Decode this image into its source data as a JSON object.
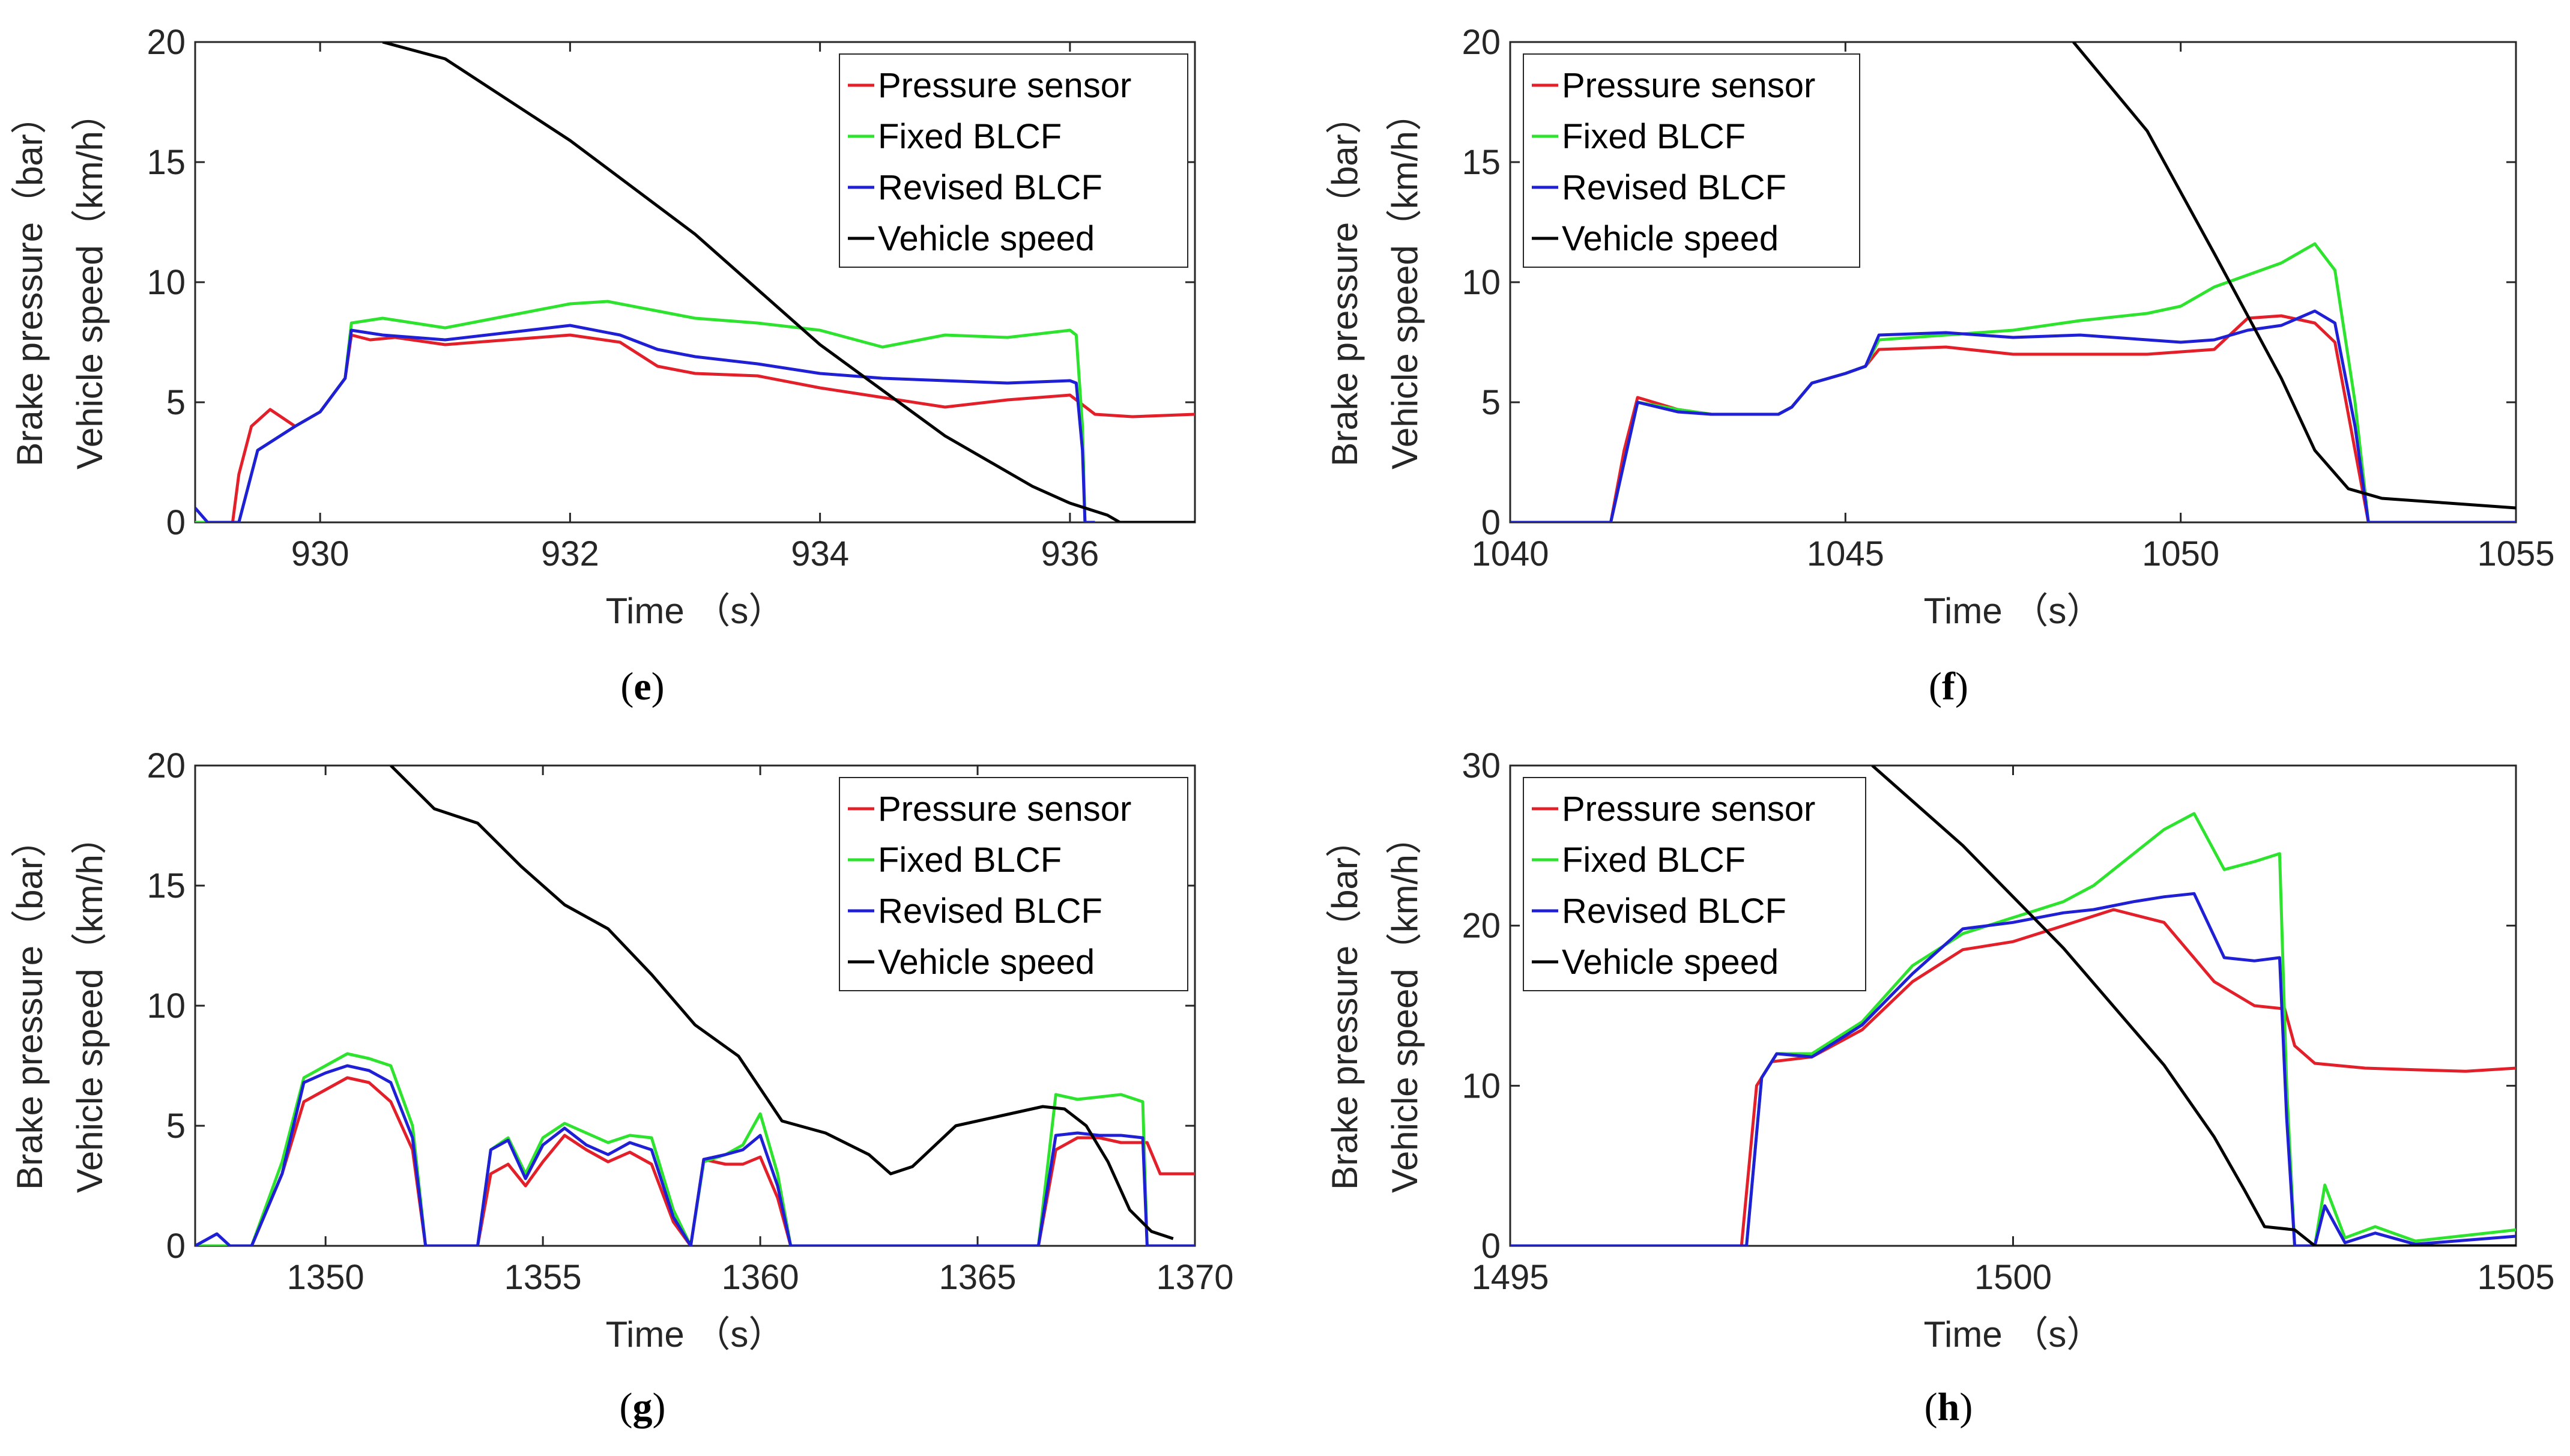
{
  "figure": {
    "panels": [
      "e",
      "f",
      "g",
      "h"
    ]
  },
  "legend": {
    "items": [
      {
        "name": "Pressure sensor",
        "color": "#e3202a"
      },
      {
        "name": "Fixed BLCF",
        "color": "#2ee32e"
      },
      {
        "name": "Revised BLCF",
        "color": "#1f1fd6"
      },
      {
        "name": "Vehicle speed",
        "color": "#000000"
      }
    ]
  },
  "chart_data": [
    {
      "panel": "e",
      "label_open": "(",
      "label_letter": "e",
      "label_close": ")",
      "type": "line",
      "xlabel": "Time （s）",
      "ylabel_top": "Brake pressure（bar）",
      "ylabel_bottom": "Vehicle speed（km/h）",
      "xlim": [
        929,
        937
      ],
      "ylim": [
        0,
        20
      ],
      "xticks": [
        930,
        932,
        934,
        936
      ],
      "yticks": [
        0,
        5,
        10,
        15,
        20
      ],
      "legend_position": "top-right",
      "series": [
        {
          "name": "Pressure sensor",
          "x": [
            929,
            929.3,
            929.35,
            929.45,
            929.6,
            929.8,
            930.0,
            930.2,
            930.25,
            930.4,
            930.6,
            931.0,
            931.5,
            932.0,
            932.4,
            932.7,
            933.0,
            933.5,
            934.0,
            934.5,
            935.0,
            935.5,
            936.0,
            936.2,
            936.5,
            937.0
          ],
          "y": [
            0,
            0,
            2,
            4,
            4.7,
            4,
            4.6,
            6,
            7.8,
            7.6,
            7.7,
            7.4,
            7.6,
            7.8,
            7.5,
            6.5,
            6.2,
            6.1,
            5.6,
            5.2,
            4.8,
            5.1,
            5.3,
            4.5,
            4.4,
            4.5
          ]
        },
        {
          "name": "Fixed BLCF",
          "x": [
            929,
            929.35,
            929.5,
            929.8,
            930.0,
            930.2,
            930.25,
            930.5,
            931.0,
            931.5,
            932.0,
            932.3,
            932.7,
            933.0,
            933.5,
            934.0,
            934.5,
            935.0,
            935.5,
            936.0,
            936.05,
            936.1,
            936.12,
            936.2
          ],
          "y": [
            0,
            0,
            3,
            4,
            4.6,
            6,
            8.3,
            8.5,
            8.1,
            8.6,
            9.1,
            9.2,
            8.8,
            8.5,
            8.3,
            8.0,
            7.3,
            7.8,
            7.7,
            8.0,
            7.8,
            4,
            0,
            0
          ]
        },
        {
          "name": "Revised BLCF",
          "x": [
            929,
            929.05,
            929.1,
            929.35,
            929.5,
            929.8,
            930.0,
            930.2,
            930.25,
            930.5,
            931.0,
            931.5,
            932.0,
            932.4,
            932.7,
            933.0,
            933.5,
            934.0,
            934.5,
            935.0,
            935.5,
            936.0,
            936.05,
            936.1,
            936.12,
            936.2
          ],
          "y": [
            0.6,
            0.3,
            0,
            0,
            3,
            4,
            4.6,
            6,
            8,
            7.8,
            7.6,
            7.9,
            8.2,
            7.8,
            7.2,
            6.9,
            6.6,
            6.2,
            6.0,
            5.9,
            5.8,
            5.9,
            5.8,
            3,
            0,
            0
          ]
        },
        {
          "name": "Vehicle speed",
          "x": [
            930.5,
            931.0,
            932.0,
            933.0,
            934.0,
            935.0,
            935.7,
            936.0,
            936.3,
            936.4,
            937.0
          ],
          "y": [
            20,
            19.3,
            15.9,
            12.0,
            7.4,
            3.6,
            1.5,
            0.8,
            0.3,
            0,
            0
          ]
        }
      ]
    },
    {
      "panel": "f",
      "label_open": "(",
      "label_letter": "f",
      "label_close": ")",
      "type": "line",
      "xlabel": "Time （s）",
      "ylabel_top": "Brake pressure（bar）",
      "ylabel_bottom": "Vehicle speed（km/h）",
      "xlim": [
        1040,
        1055
      ],
      "ylim": [
        0,
        20
      ],
      "xticks": [
        1040,
        1045,
        1050,
        1055
      ],
      "yticks": [
        0,
        5,
        10,
        15,
        20
      ],
      "legend_position": "top-left",
      "series": [
        {
          "name": "Pressure sensor",
          "x": [
            1040,
            1041.5,
            1041.7,
            1041.9,
            1042.5,
            1043.0,
            1044.0,
            1044.2,
            1044.5,
            1045.0,
            1045.3,
            1045.5,
            1046.5,
            1047.5,
            1048.5,
            1049.5,
            1050.5,
            1051.0,
            1051.5,
            1052.0,
            1052.3,
            1052.6,
            1052.8,
            1055.0
          ],
          "y": [
            0,
            0,
            3,
            5.2,
            4.7,
            4.5,
            4.5,
            4.8,
            5.8,
            6.2,
            6.5,
            7.2,
            7.3,
            7.0,
            7.0,
            7.0,
            7.2,
            8.5,
            8.6,
            8.3,
            7.5,
            3,
            0,
            0
          ]
        },
        {
          "name": "Fixed BLCF",
          "x": [
            1040,
            1041.5,
            1041.7,
            1041.9,
            1042.5,
            1043.0,
            1044.0,
            1044.2,
            1044.5,
            1045.0,
            1045.3,
            1045.5,
            1046.5,
            1047.5,
            1048.5,
            1049.5,
            1050.0,
            1050.5,
            1051.0,
            1051.5,
            1052.0,
            1052.3,
            1052.6,
            1052.8,
            1055.0
          ],
          "y": [
            0,
            0,
            2.5,
            5.0,
            4.7,
            4.5,
            4.5,
            4.8,
            5.8,
            6.2,
            6.5,
            7.6,
            7.8,
            8.0,
            8.4,
            8.7,
            9.0,
            9.8,
            10.3,
            10.8,
            11.6,
            10.5,
            5,
            0,
            0
          ]
        },
        {
          "name": "Revised BLCF",
          "x": [
            1040,
            1041.5,
            1041.7,
            1041.9,
            1042.5,
            1043.0,
            1044.0,
            1044.2,
            1044.5,
            1045.0,
            1045.3,
            1045.5,
            1046.5,
            1047.5,
            1048.5,
            1049.5,
            1050.0,
            1050.5,
            1051.0,
            1051.5,
            1052.0,
            1052.3,
            1052.6,
            1052.8,
            1055.0
          ],
          "y": [
            0,
            0,
            2.5,
            5.0,
            4.6,
            4.5,
            4.5,
            4.8,
            5.8,
            6.2,
            6.5,
            7.8,
            7.9,
            7.7,
            7.8,
            7.6,
            7.5,
            7.6,
            8.0,
            8.2,
            8.8,
            8.3,
            4,
            0,
            0
          ]
        },
        {
          "name": "Vehicle speed",
          "x": [
            1048.4,
            1049.5,
            1050.5,
            1051.5,
            1052.0,
            1052.5,
            1053.0,
            1054.0,
            1055.0
          ],
          "y": [
            20,
            16.3,
            11.2,
            6.0,
            3.0,
            1.4,
            1.0,
            0.8,
            0.6
          ]
        }
      ]
    },
    {
      "panel": "g",
      "label_open": "(",
      "label_letter": "g",
      "label_close": ")",
      "type": "line",
      "xlabel": "Time （s）",
      "ylabel_top": "Brake pressure（bar）",
      "ylabel_bottom": "Vehicle speed（km/h）",
      "xlim": [
        1347,
        1370
      ],
      "ylim": [
        0,
        20
      ],
      "xticks": [
        1350,
        1355,
        1360,
        1365,
        1370
      ],
      "yticks": [
        0,
        5,
        10,
        15,
        20
      ],
      "legend_position": "top-right",
      "series": [
        {
          "name": "Pressure sensor",
          "x": [
            1347,
            1348.3,
            1349.0,
            1349.5,
            1350.0,
            1350.5,
            1351.0,
            1351.5,
            1352.0,
            1352.3,
            1353.5,
            1353.8,
            1354.2,
            1354.6,
            1355.0,
            1355.5,
            1356.0,
            1356.5,
            1357.0,
            1357.5,
            1358.0,
            1358.4,
            1358.7,
            1359.2,
            1359.6,
            1360.0,
            1360.4,
            1360.7,
            1366.4,
            1366.8,
            1367.3,
            1367.8,
            1368.3,
            1368.9,
            1369.2,
            1370.0
          ],
          "y": [
            0,
            0,
            3,
            6,
            6.5,
            7,
            6.8,
            6,
            4,
            0,
            0,
            3,
            3.4,
            2.5,
            3.5,
            4.6,
            4.0,
            3.5,
            3.9,
            3.4,
            1,
            0,
            3.6,
            3.4,
            3.4,
            3.7,
            2,
            0,
            0,
            4.0,
            4.5,
            4.5,
            4.3,
            4.3,
            3.0,
            3.0
          ]
        },
        {
          "name": "Fixed BLCF",
          "x": [
            1347,
            1348.3,
            1349.0,
            1349.5,
            1350.0,
            1350.5,
            1351.0,
            1351.5,
            1352.0,
            1352.3,
            1353.5,
            1353.8,
            1354.2,
            1354.6,
            1355.0,
            1355.5,
            1356.0,
            1356.5,
            1357.0,
            1357.5,
            1358.0,
            1358.4,
            1358.7,
            1359.2,
            1359.6,
            1360.0,
            1360.4,
            1360.7,
            1366.4,
            1366.8,
            1367.3,
            1367.8,
            1368.3,
            1368.8,
            1368.9,
            1370.0
          ],
          "y": [
            0,
            0,
            3.5,
            7,
            7.5,
            8,
            7.8,
            7.5,
            5,
            0,
            0,
            4,
            4.5,
            3,
            4.5,
            5.1,
            4.7,
            4.3,
            4.6,
            4.5,
            1.5,
            0,
            3.5,
            3.8,
            4.2,
            5.5,
            3,
            0,
            0,
            6.3,
            6.1,
            6.2,
            6.3,
            6.0,
            0,
            0
          ]
        },
        {
          "name": "Revised BLCF",
          "x": [
            1347,
            1347.5,
            1347.8,
            1348.3,
            1349.0,
            1349.5,
            1350.0,
            1350.5,
            1351.0,
            1351.5,
            1352.0,
            1352.3,
            1353.5,
            1353.8,
            1354.2,
            1354.6,
            1355.0,
            1355.5,
            1356.0,
            1356.5,
            1357.0,
            1357.5,
            1358.0,
            1358.4,
            1358.7,
            1359.2,
            1359.6,
            1360.0,
            1360.4,
            1360.7,
            1366.4,
            1366.8,
            1367.3,
            1367.8,
            1368.3,
            1368.8,
            1368.9,
            1370.0
          ],
          "y": [
            0,
            0.5,
            0,
            0,
            3,
            6.8,
            7.2,
            7.5,
            7.3,
            6.8,
            4.5,
            0,
            0,
            4,
            4.4,
            2.8,
            4.2,
            4.9,
            4.2,
            3.8,
            4.3,
            4.0,
            1.2,
            0,
            3.6,
            3.8,
            4.0,
            4.6,
            2.5,
            0,
            0,
            4.6,
            4.7,
            4.6,
            4.6,
            4.5,
            0,
            0
          ]
        },
        {
          "name": "Vehicle speed",
          "x": [
            1351.5,
            1352.5,
            1353.5,
            1354.5,
            1355.5,
            1356.5,
            1357.5,
            1358.5,
            1359.5,
            1360.5,
            1361.5,
            1362.5,
            1363.0,
            1363.5,
            1364.5,
            1365.5,
            1366.5,
            1367.0,
            1367.5,
            1368.0,
            1368.5,
            1369.0,
            1369.5
          ],
          "y": [
            20,
            18.2,
            17.6,
            15.8,
            14.2,
            13.2,
            11.3,
            9.2,
            7.9,
            5.2,
            4.7,
            3.8,
            3.0,
            3.3,
            5.0,
            5.4,
            5.8,
            5.7,
            5.0,
            3.5,
            1.5,
            0.6,
            0.3
          ]
        }
      ]
    },
    {
      "panel": "h",
      "label_open": "(",
      "label_letter": "h",
      "label_close": ")",
      "type": "line",
      "xlabel": "Time （s）",
      "ylabel_top": "Brake pressure（bar）",
      "ylabel_bottom": "Vehicle speed（km/h）",
      "xlim": [
        1495,
        1505
      ],
      "ylim": [
        0,
        30
      ],
      "xticks": [
        1495,
        1500,
        1505
      ],
      "yticks": [
        0,
        10,
        20,
        30
      ],
      "legend_position": "top-left",
      "series": [
        {
          "name": "Pressure sensor",
          "x": [
            1495,
            1497.3,
            1497.45,
            1497.6,
            1498.0,
            1498.5,
            1499.0,
            1499.5,
            1500.0,
            1500.5,
            1501.0,
            1501.5,
            1502.0,
            1502.4,
            1502.7,
            1502.8,
            1503.0,
            1503.5,
            1504.0,
            1504.5,
            1505.0
          ],
          "y": [
            0,
            0,
            10,
            11.5,
            11.8,
            13.5,
            16.5,
            18.5,
            19.0,
            20.0,
            21.0,
            20.2,
            16.5,
            15.0,
            14.8,
            12.5,
            11.4,
            11.1,
            11.0,
            10.9,
            11.1
          ]
        },
        {
          "name": "Fixed BLCF",
          "x": [
            1495,
            1497.35,
            1497.5,
            1497.65,
            1498.0,
            1498.5,
            1499.0,
            1499.5,
            1500.0,
            1500.5,
            1500.8,
            1501.2,
            1501.5,
            1501.8,
            1502.1,
            1502.4,
            1502.65,
            1502.72,
            1502.8,
            1503.0,
            1503.1,
            1503.3,
            1503.6,
            1504.0,
            1505.0
          ],
          "y": [
            0,
            0,
            10.5,
            12.0,
            12.0,
            14.0,
            17.5,
            19.5,
            20.5,
            21.5,
            22.5,
            24.5,
            26.0,
            27.0,
            23.5,
            24.0,
            24.5,
            10,
            0,
            0,
            3.8,
            0.5,
            1.2,
            0.3,
            1.0
          ]
        },
        {
          "name": "Revised BLCF",
          "x": [
            1495,
            1497.35,
            1497.5,
            1497.65,
            1498.0,
            1498.5,
            1499.0,
            1499.5,
            1500.0,
            1500.5,
            1500.8,
            1501.2,
            1501.5,
            1501.8,
            1502.1,
            1502.4,
            1502.65,
            1502.72,
            1502.8,
            1503.0,
            1503.1,
            1503.3,
            1503.6,
            1504.0,
            1505.0
          ],
          "y": [
            0,
            0,
            10.5,
            12.0,
            11.8,
            13.8,
            17.0,
            19.8,
            20.2,
            20.8,
            21.0,
            21.5,
            21.8,
            22.0,
            18.0,
            17.8,
            18.0,
            8,
            0,
            0,
            2.5,
            0.2,
            0.8,
            0.1,
            0.6
          ]
        },
        {
          "name": "Vehicle speed",
          "x": [
            1498.6,
            1499.5,
            1500.5,
            1501.5,
            1502.0,
            1502.3,
            1502.5,
            1502.8,
            1503.0,
            1505.0
          ],
          "y": [
            30,
            25.0,
            18.6,
            11.3,
            6.8,
            3.5,
            1.2,
            1.0,
            0,
            0
          ]
        }
      ]
    }
  ]
}
